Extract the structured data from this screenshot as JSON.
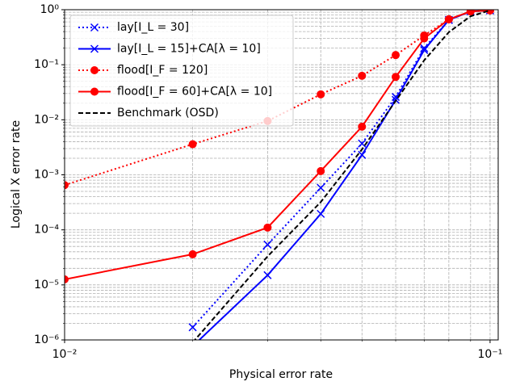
{
  "chart_data": {
    "type": "line",
    "xlabel": "Physical error rate",
    "ylabel": "Logical X error rate",
    "x": [
      0.01,
      0.02,
      0.03,
      0.04,
      0.05,
      0.06,
      0.07,
      0.08,
      0.09,
      0.1
    ],
    "series": [
      {
        "name": "lay[I_L = 30]",
        "color": "#0000ff",
        "linestyle": "dotted",
        "marker": "x",
        "values": [
          null,
          1.7e-06,
          5.4e-05,
          0.00058,
          0.0037,
          0.026,
          0.2,
          0.65,
          0.93,
          0.97
        ]
      },
      {
        "name": "lay[I_L = 15]+CA[λ = 10]",
        "color": "#0000ff",
        "linestyle": "solid",
        "marker": "x",
        "values": [
          null,
          7.7e-07,
          1.5e-05,
          0.000195,
          0.0023,
          0.023,
          0.185,
          0.65,
          0.93,
          0.97
        ]
      },
      {
        "name": "flood[I_F = 120]",
        "color": "#ff0000",
        "linestyle": "dotted",
        "marker": "o",
        "values": [
          0.00065,
          0.0036,
          0.0095,
          0.029,
          0.063,
          0.15,
          0.34,
          0.67,
          0.93,
          0.97
        ]
      },
      {
        "name": "flood[I_F = 60]+CA[λ = 10]",
        "color": "#ff0000",
        "linestyle": "solid",
        "marker": "o",
        "values": [
          1.26e-05,
          3.6e-05,
          0.00011,
          0.00117,
          0.0075,
          0.06,
          0.3,
          0.67,
          0.93,
          0.97
        ]
      },
      {
        "name": "Benchmark (OSD)",
        "color": "#000000",
        "linestyle": "dashed",
        "marker": "none",
        "values": [
          null,
          9e-07,
          3.3e-05,
          0.00032,
          0.0029,
          0.022,
          0.12,
          0.39,
          0.76,
          0.97
        ]
      }
    ],
    "xlog": true,
    "ylog": true,
    "xlim": [
      0.01,
      0.1045
    ],
    "ylim": [
      1e-06,
      1
    ],
    "xticks": [
      {
        "value": 0.01,
        "label": "10⁻²"
      },
      {
        "value": 0.1,
        "label": "10⁻¹"
      }
    ],
    "yticks": [
      {
        "value": 1e-06,
        "label": "10⁻⁶"
      },
      {
        "value": 1e-05,
        "label": "10⁻⁵"
      },
      {
        "value": 0.0001,
        "label": "10⁻⁴"
      },
      {
        "value": 0.001,
        "label": "10⁻³"
      },
      {
        "value": 0.01,
        "label": "10⁻²"
      },
      {
        "value": 0.1,
        "label": "10⁻¹"
      },
      {
        "value": 1,
        "label": "10⁰"
      }
    ],
    "grid": true,
    "minor_grid": true,
    "legend": "upper left"
  }
}
